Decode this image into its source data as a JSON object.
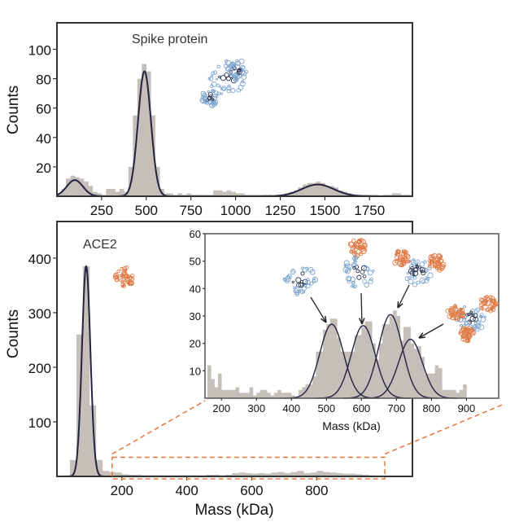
{
  "colors": {
    "bar": "#c4bfb9",
    "fit": "#23233f",
    "zoom_box": "#e8763a",
    "spike": "#7fa6cf",
    "spike_dark": "#2a3550",
    "ace2": "#e07a45"
  },
  "chart_data": [
    {
      "id": "top",
      "type": "bar",
      "title": "",
      "annotation": "Spike protein",
      "xlabel": "",
      "ylabel": "Counts",
      "xlim": [
        0,
        1990
      ],
      "ylim": [
        0,
        118
      ],
      "xticks": [
        250,
        500,
        750,
        1000,
        1250,
        1500,
        1750
      ],
      "yticks": [
        20,
        40,
        60,
        80,
        100
      ],
      "bin_start": 0,
      "bin_width": 25,
      "values": [
        2,
        5,
        12,
        14,
        13,
        12,
        10,
        7,
        3,
        2,
        1,
        5,
        5,
        3,
        5,
        3,
        20,
        55,
        80,
        90,
        85,
        55,
        20,
        5,
        2,
        2,
        1,
        2,
        1,
        2,
        1,
        1,
        1,
        1,
        1,
        4,
        4,
        3,
        4,
        3,
        2,
        2,
        1,
        1,
        1,
        1,
        1,
        1,
        0,
        1,
        1,
        2,
        3,
        4,
        6,
        8,
        9,
        9,
        10,
        9,
        7,
        7,
        6,
        4,
        3,
        2,
        1,
        1,
        1,
        1,
        1,
        1,
        0,
        1,
        1,
        2,
        2,
        1,
        1,
        1
      ],
      "fits": [
        {
          "center": 100,
          "amplitude": 11,
          "sigma": 45
        },
        {
          "center": 490,
          "amplitude": 85,
          "sigma": 36
        },
        {
          "center": 1460,
          "amplitude": 8,
          "sigma": 90
        }
      ]
    },
    {
      "id": "bottom",
      "type": "bar",
      "annotation": "ACE2",
      "xlabel": "Mass (kDa)",
      "ylabel": "Counts",
      "xlim": [
        0,
        1095
      ],
      "ylim": [
        0,
        467
      ],
      "xticks": [
        200,
        400,
        600,
        800
      ],
      "yticks": [
        100,
        200,
        300,
        400
      ],
      "bin_start": 0,
      "bin_width": 20,
      "values": [
        0,
        2,
        30,
        260,
        385,
        130,
        30,
        10,
        8,
        7,
        4,
        3,
        3,
        2,
        2,
        2,
        2,
        2,
        2,
        2,
        2,
        2,
        2,
        3,
        3,
        2,
        3,
        6,
        7,
        6,
        5,
        6,
        5,
        7,
        8,
        6,
        8,
        10,
        6,
        7,
        10,
        8,
        7,
        6,
        5,
        5,
        4,
        3,
        2,
        1
      ],
      "fits": [
        {
          "center": 90,
          "amplitude": 385,
          "sigma": 13
        }
      ],
      "zoom_region": {
        "x": [
          170,
          1010
        ],
        "y": [
          0,
          35
        ]
      }
    },
    {
      "id": "inset",
      "type": "bar",
      "xlabel": "Mass (kDa)",
      "ylabel": "",
      "xlim": [
        153,
        992
      ],
      "ylim": [
        0,
        60
      ],
      "xticks": [
        200,
        300,
        400,
        500,
        600,
        700,
        800,
        900
      ],
      "yticks": [
        10,
        20,
        30,
        40,
        50,
        60
      ],
      "bin_start": 160,
      "bin_width": 10,
      "values": [
        12,
        7,
        4,
        9,
        3,
        3,
        3,
        3,
        4,
        2,
        2,
        2,
        4,
        1,
        2,
        3,
        3,
        2,
        1,
        2,
        3,
        2,
        2,
        2,
        1,
        0,
        3,
        4,
        5,
        5,
        8,
        17,
        17,
        25,
        27,
        29,
        29,
        22,
        17,
        17,
        17,
        17,
        23,
        23,
        26,
        28,
        28,
        20,
        14,
        20,
        27,
        27,
        30,
        32,
        30,
        21,
        26,
        26,
        20,
        18,
        19,
        15,
        9,
        9,
        9,
        12,
        11,
        3,
        3,
        3,
        3,
        2,
        3,
        5,
        0,
        0,
        0,
        0,
        0,
        0,
        0,
        0,
        0,
        1
      ],
      "fits": [
        {
          "center": 515,
          "amplitude": 27,
          "sigma": 34
        },
        {
          "center": 605,
          "amplitude": 26.5,
          "sigma": 34
        },
        {
          "center": 683,
          "amplitude": 30.5,
          "sigma": 34
        },
        {
          "center": 740,
          "amplitude": 21.5,
          "sigma": 34
        }
      ]
    }
  ]
}
